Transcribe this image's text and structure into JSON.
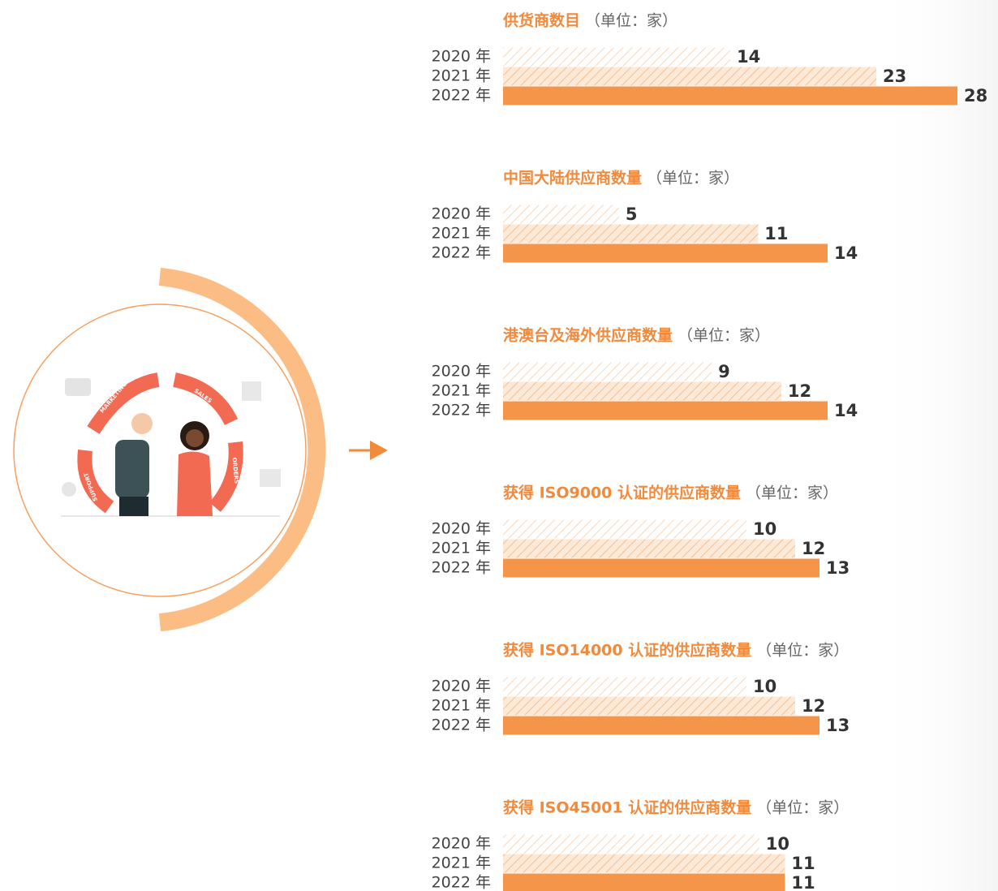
{
  "chart_data": [
    {
      "type": "bar",
      "title": "供货商数目",
      "unit": "（单位：家）",
      "categories": [
        "2020 年",
        "2021 年",
        "2022 年"
      ],
      "values": [
        14,
        23,
        28
      ],
      "colors": [
        "#fbe3cf",
        "#f9cfa8",
        "#f5954a"
      ],
      "xlim": [
        0,
        30
      ]
    },
    {
      "type": "bar",
      "title": "中国大陆供应商数量",
      "unit": "（单位：家）",
      "categories": [
        "2020 年",
        "2021 年",
        "2022 年"
      ],
      "values": [
        5,
        11,
        14
      ],
      "colors": [
        "#fbe3cf",
        "#f9cfa8",
        "#f5954a"
      ],
      "xlim": [
        0,
        21
      ]
    },
    {
      "type": "bar",
      "title": "港澳台及海外供应商数量",
      "unit": "（单位：家）",
      "categories": [
        "2020 年",
        "2021 年",
        "2022 年"
      ],
      "values": [
        9,
        12,
        14
      ],
      "colors": [
        "#fbe3cf",
        "#f9cfa8",
        "#f5954a"
      ],
      "xlim": [
        0,
        21
      ]
    },
    {
      "type": "bar",
      "title": "获得 ISO9000 认证的供应商数量",
      "unit": "（单位：家）",
      "categories": [
        "2020 年",
        "2021 年",
        "2022 年"
      ],
      "values": [
        10,
        12,
        13
      ],
      "colors": [
        "#fbe3cf",
        "#f9cfa8",
        "#f5954a"
      ],
      "xlim": [
        0,
        20
      ]
    },
    {
      "type": "bar",
      "title": "获得 ISO14000 认证的供应商数量",
      "unit": "（单位：家）",
      "categories": [
        "2020 年",
        "2021 年",
        "2022 年"
      ],
      "values": [
        10,
        12,
        13
      ],
      "colors": [
        "#fbe3cf",
        "#f9cfa8",
        "#f5954a"
      ],
      "xlim": [
        0,
        20
      ]
    },
    {
      "type": "bar",
      "title": "获得 ISO45001 认证的供应商数量",
      "unit": "（单位：家）",
      "categories": [
        "2020 年",
        "2021 年",
        "2022 年"
      ],
      "values": [
        10,
        11,
        11
      ],
      "colors": [
        "#fbe3cf",
        "#f9cfa8",
        "#f5954a"
      ],
      "xlim": [
        0,
        19
      ]
    }
  ],
  "illustration": {
    "labels": [
      "MARKETING",
      "SALES",
      "ORDERS",
      "SUPPORT"
    ]
  }
}
